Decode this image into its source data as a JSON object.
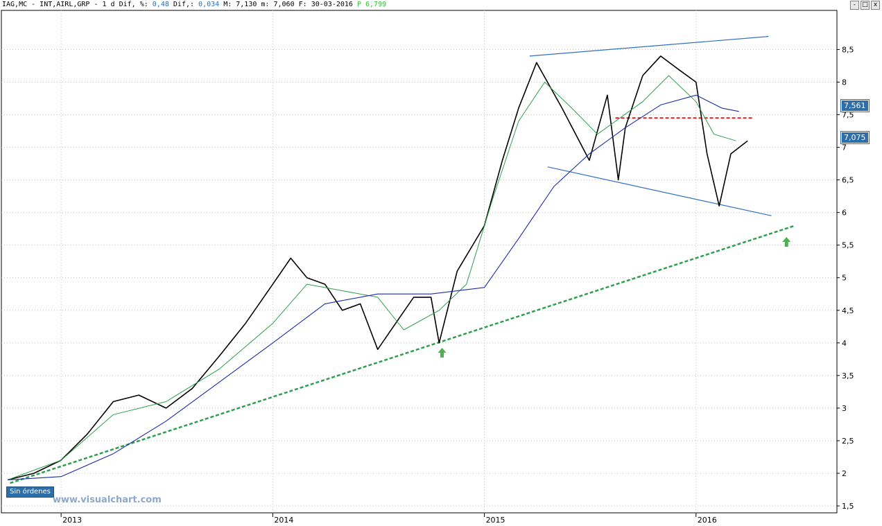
{
  "header": {
    "symbol": "IAG,MC - INT,AIRL,GRP -  1 d",
    "dif_pct_label": "Dif, %:",
    "dif_pct_value": "0,48",
    "dif_label": "Dif,:",
    "dif_value": "0,034",
    "max_label": "M:",
    "max_value": "7,130",
    "min_label": "m:",
    "min_value": "7,060",
    "date_label": "F:",
    "date_value": "30-03-2016",
    "p_label": "P",
    "p_value": "6,799"
  },
  "window_buttons": {
    "min": "-",
    "max": "□",
    "close": "x"
  },
  "badges": {
    "orders": "Sin órdenes",
    "price_upper": "7,561",
    "price_lower": "7,075"
  },
  "watermark": "www.visualchart.com",
  "colors": {
    "price": "#000000",
    "sma_fast": "#2e9e4f",
    "sma_slow": "#1c2aa8",
    "channel": "#2f6fc0",
    "support_trend": "#2e9e4f",
    "resistance_level": "#e02020",
    "arrow": "#4caf50",
    "grid": "#c0c0c0"
  },
  "chart_data": {
    "type": "line",
    "title": "",
    "xlabel": "",
    "ylabel": "",
    "ylim": [
      1.5,
      9
    ],
    "x_ticks": [
      "2013",
      "2014",
      "2015",
      "2016"
    ],
    "y_ticks": [
      1.5,
      2,
      2.5,
      3,
      3.5,
      4,
      4.5,
      5,
      5.5,
      6,
      6.5,
      7,
      7.5,
      8,
      8.5
    ],
    "y_tick_labels": [
      "1,5",
      "2",
      "2,5",
      "3",
      "3,5",
      "4",
      "4,5",
      "5",
      "5,5",
      "6",
      "6,5",
      "7",
      "7,5",
      "8",
      "8,5"
    ],
    "grid": true,
    "series": [
      {
        "key": "price",
        "x": [
          "2012-10-01",
          "2012-11-15",
          "2013-01-01",
          "2013-02-15",
          "2013-04-01",
          "2013-05-15",
          "2013-07-01",
          "2013-08-15",
          "2013-10-01",
          "2013-11-15",
          "2014-01-01",
          "2014-02-01",
          "2014-03-01",
          "2014-04-01",
          "2014-05-01",
          "2014-06-01",
          "2014-07-01",
          "2014-08-01",
          "2014-09-01",
          "2014-10-01",
          "2014-10-15",
          "2014-11-15",
          "2015-01-01",
          "2015-02-01",
          "2015-03-01",
          "2015-04-01",
          "2015-05-15",
          "2015-07-01",
          "2015-08-01",
          "2015-08-20",
          "2015-09-01",
          "2015-10-01",
          "2015-11-01",
          "2015-12-01",
          "2016-01-01",
          "2016-01-20",
          "2016-02-10",
          "2016-03-01",
          "2016-03-30"
        ],
        "y": [
          1.9,
          2.0,
          2.2,
          2.6,
          3.1,
          3.2,
          3.0,
          3.3,
          3.8,
          4.3,
          4.9,
          5.3,
          5.0,
          4.9,
          4.5,
          4.6,
          3.9,
          4.3,
          4.7,
          4.7,
          4.0,
          5.1,
          5.8,
          6.8,
          7.6,
          8.3,
          7.6,
          6.8,
          7.8,
          6.5,
          7.3,
          8.1,
          8.4,
          8.2,
          8.0,
          6.9,
          6.1,
          6.9,
          7.1
        ]
      },
      {
        "key": "sma_fast",
        "x": [
          "2012-10-01",
          "2013-01-01",
          "2013-04-01",
          "2013-07-01",
          "2013-10-01",
          "2014-01-01",
          "2014-03-01",
          "2014-05-01",
          "2014-07-01",
          "2014-08-15",
          "2014-10-15",
          "2014-12-01",
          "2015-01-15",
          "2015-03-01",
          "2015-04-15",
          "2015-06-01",
          "2015-07-15",
          "2015-08-15",
          "2015-10-01",
          "2015-11-15",
          "2016-01-01",
          "2016-02-01",
          "2016-03-10"
        ],
        "y": [
          1.9,
          2.2,
          2.9,
          3.1,
          3.6,
          4.3,
          4.9,
          4.8,
          4.7,
          4.2,
          4.5,
          4.9,
          6.2,
          7.4,
          8.0,
          7.6,
          7.2,
          7.4,
          7.7,
          8.1,
          7.7,
          7.2,
          7.1
        ]
      },
      {
        "key": "sma_slow",
        "x": [
          "2012-10-01",
          "2013-01-01",
          "2013-04-01",
          "2013-07-01",
          "2013-10-01",
          "2014-01-01",
          "2014-04-01",
          "2014-07-01",
          "2014-10-01",
          "2015-01-01",
          "2015-03-01",
          "2015-05-01",
          "2015-07-01",
          "2015-09-01",
          "2015-11-01",
          "2016-01-01",
          "2016-02-15",
          "2016-03-15"
        ],
        "y": [
          1.9,
          1.95,
          2.3,
          2.8,
          3.4,
          4.0,
          4.6,
          4.75,
          4.75,
          4.85,
          5.6,
          6.4,
          6.9,
          7.3,
          7.65,
          7.8,
          7.6,
          7.55
        ]
      }
    ],
    "annotations": [
      {
        "kind": "channel_upper",
        "x": [
          "2015-03-20",
          "2016-05-05"
        ],
        "y": [
          8.4,
          8.7
        ]
      },
      {
        "kind": "channel_lower",
        "x": [
          "2015-04-20",
          "2016-05-10"
        ],
        "y": [
          6.7,
          5.95
        ]
      },
      {
        "kind": "support_trend",
        "x": [
          "2012-10-05",
          "2016-06-20"
        ],
        "y": [
          1.85,
          5.8
        ]
      },
      {
        "kind": "resistance_level",
        "x": [
          "2015-08-15",
          "2016-04-10"
        ],
        "y": [
          7.45,
          7.45
        ]
      },
      {
        "kind": "up_arrow",
        "x": [
          "2014-10-20"
        ],
        "y": [
          3.85
        ]
      },
      {
        "kind": "up_arrow",
        "x": [
          "2016-06-05"
        ],
        "y": [
          5.55
        ]
      }
    ]
  }
}
